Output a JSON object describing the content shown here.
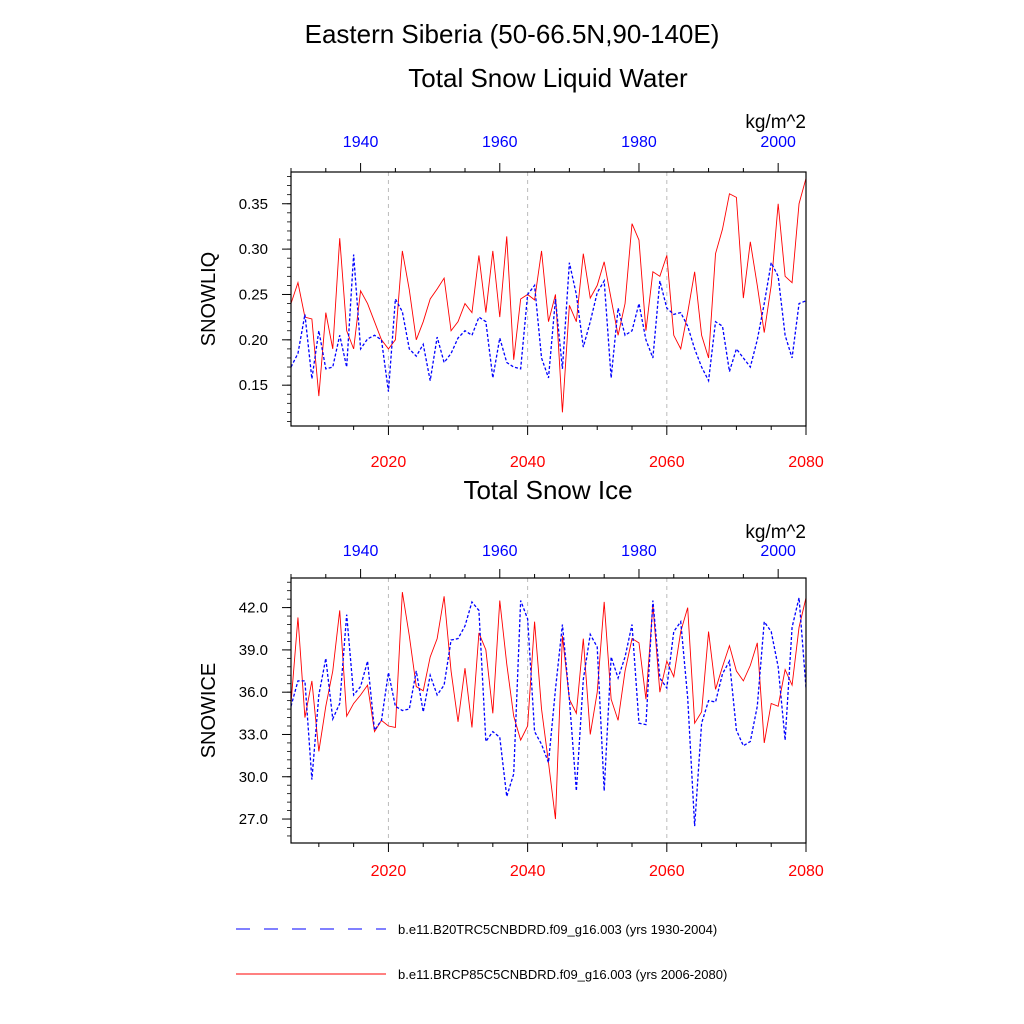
{
  "figure": {
    "title": "Eastern Siberia (50-66.5N,90-140E)"
  },
  "chart_data": [
    {
      "type": "line",
      "title": "Total Snow Liquid Water",
      "ylabel": "SNOWLIQ",
      "units": "kg/m^2",
      "ylim": [
        0.105,
        0.385
      ],
      "y_ticks": [
        0.15,
        0.2,
        0.25,
        0.3,
        0.35
      ],
      "y_tick_labels": [
        "0.15",
        "0.20",
        "0.25",
        "0.30",
        "0.35"
      ],
      "x_bottom": {
        "range": [
          2006,
          2080
        ],
        "ticks": [
          2020,
          2040,
          2060,
          2080
        ],
        "labels": [
          "2020",
          "2040",
          "2060",
          "2080"
        ],
        "color": "#ff0000"
      },
      "x_top": {
        "range": [
          1930,
          2004
        ],
        "ticks": [
          1940,
          1960,
          1980,
          2000
        ],
        "labels": [
          "1940",
          "1960",
          "1980",
          "2000"
        ],
        "color": "#0000ff"
      },
      "grid": "vertical dashed at bottom-axis ticks",
      "series": [
        {
          "name": "b.e11.BRCP85C5CNBDRD.f09_g16.003 (yrs 2006-2080)",
          "axis": "bottom",
          "color": "#ff0000",
          "style": "solid",
          "x_start": 2006,
          "values": [
            0.24,
            0.263,
            0.225,
            0.223,
            0.138,
            0.23,
            0.19,
            0.312,
            0.21,
            0.19,
            0.254,
            0.24,
            0.22,
            0.2,
            0.19,
            0.2,
            0.298,
            0.255,
            0.2,
            0.22,
            0.245,
            0.256,
            0.268,
            0.21,
            0.22,
            0.24,
            0.23,
            0.293,
            0.23,
            0.298,
            0.225,
            0.314,
            0.178,
            0.245,
            0.25,
            0.244,
            0.298,
            0.22,
            0.25,
            0.12,
            0.238,
            0.22,
            0.295,
            0.246,
            0.26,
            0.286,
            0.245,
            0.205,
            0.24,
            0.328,
            0.31,
            0.21,
            0.275,
            0.27,
            0.293,
            0.205,
            0.19,
            0.23,
            0.275,
            0.205,
            0.18,
            0.295,
            0.322,
            0.361,
            0.357,
            0.246,
            0.308,
            0.26,
            0.208,
            0.26,
            0.35,
            0.27,
            0.263,
            0.35,
            0.378,
            0.29
          ]
        },
        {
          "name": "b.e11.B20TRC5CNBDRD.f09_g16.003 (yrs 1930-2004)",
          "axis": "top",
          "color": "#0000ff",
          "style": "dashed",
          "x_start": 1930,
          "values": [
            0.17,
            0.185,
            0.228,
            0.157,
            0.21,
            0.168,
            0.17,
            0.205,
            0.17,
            0.294,
            0.19,
            0.201,
            0.205,
            0.2,
            0.143,
            0.245,
            0.231,
            0.19,
            0.182,
            0.195,
            0.155,
            0.203,
            0.175,
            0.185,
            0.202,
            0.21,
            0.205,
            0.225,
            0.22,
            0.158,
            0.202,
            0.175,
            0.17,
            0.168,
            0.25,
            0.26,
            0.18,
            0.158,
            0.245,
            0.168,
            0.285,
            0.25,
            0.192,
            0.22,
            0.252,
            0.265,
            0.158,
            0.235,
            0.205,
            0.21,
            0.24,
            0.2,
            0.18,
            0.265,
            0.235,
            0.228,
            0.23,
            0.215,
            0.19,
            0.17,
            0.155,
            0.22,
            0.215,
            0.165,
            0.19,
            0.18,
            0.17,
            0.2,
            0.24,
            0.285,
            0.27,
            0.205,
            0.18,
            0.24,
            0.243,
            0.223
          ]
        }
      ]
    },
    {
      "type": "line",
      "title": "Total Snow Ice",
      "ylabel": "SNOWICE",
      "units": "kg/m^2",
      "ylim": [
        25.3,
        44.1
      ],
      "y_ticks": [
        27,
        30,
        33,
        36,
        39,
        42
      ],
      "y_tick_labels": [
        "27.0",
        "30.0",
        "33.0",
        "36.0",
        "39.0",
        "42.0"
      ],
      "x_bottom": {
        "range": [
          2006,
          2080
        ],
        "ticks": [
          2020,
          2040,
          2060,
          2080
        ],
        "labels": [
          "2020",
          "2040",
          "2060",
          "2080"
        ],
        "color": "#ff0000"
      },
      "x_top": {
        "range": [
          1930,
          2004
        ],
        "ticks": [
          1940,
          1960,
          1980,
          2000
        ],
        "labels": [
          "1940",
          "1960",
          "1980",
          "2000"
        ],
        "color": "#0000ff"
      },
      "grid": "vertical dashed at bottom-axis ticks",
      "series": [
        {
          "name": "b.e11.BRCP85C5CNBDRD.f09_g16.003 (yrs 2006-2080)",
          "axis": "bottom",
          "color": "#ff0000",
          "style": "solid",
          "x_start": 2006,
          "values": [
            35.2,
            41.3,
            34.2,
            36.8,
            31.8,
            35.0,
            37.5,
            41.8,
            34.3,
            35.2,
            35.8,
            36.5,
            33.2,
            34.0,
            33.6,
            33.5,
            43.1,
            40.0,
            36.4,
            36.1,
            38.5,
            39.8,
            42.8,
            37.5,
            33.9,
            37.7,
            33.5,
            40.2,
            39.0,
            34.5,
            42.5,
            38.0,
            34.3,
            32.6,
            33.6,
            41.0,
            34.8,
            31.0,
            27.0,
            40.0,
            35.5,
            34.5,
            39.8,
            33.0,
            36.0,
            42.4,
            35.5,
            34.0,
            37.5,
            39.8,
            39.5,
            35.5,
            42.2,
            36.0,
            38.2,
            37.1,
            40.3,
            42.0,
            33.8,
            34.6,
            40.3,
            36.2,
            37.8,
            39.3,
            37.5,
            36.8,
            37.9,
            39.5,
            32.4,
            35.2,
            35.0,
            37.6,
            36.5,
            40.6,
            42.7,
            36.1
          ]
        },
        {
          "name": "b.e11.B20TRC5CNBDRD.f09_g16.003 (yrs 1930-2004)",
          "axis": "top",
          "color": "#0000ff",
          "style": "dashed",
          "x_start": 1930,
          "values": [
            35.0,
            36.8,
            36.8,
            29.8,
            35.8,
            38.4,
            34.1,
            35.2,
            41.5,
            35.8,
            36.4,
            38.2,
            33.3,
            34.0,
            37.4,
            35.0,
            34.7,
            34.8,
            37.5,
            34.6,
            37.2,
            35.8,
            36.5,
            39.7,
            39.8,
            40.7,
            42.4,
            41.8,
            32.5,
            33.2,
            32.8,
            28.6,
            30.2,
            42.5,
            41.2,
            33.2,
            32.3,
            31.0,
            36.2,
            40.8,
            35.5,
            29.0,
            36.9,
            40.1,
            39.2,
            29.0,
            38.5,
            37.0,
            38.5,
            40.8,
            33.8,
            33.7,
            42.5,
            37.0,
            36.3,
            40.3,
            41.0,
            35.6,
            26.5,
            33.8,
            35.4,
            35.3,
            37.3,
            38.2,
            33.3,
            32.2,
            32.5,
            35.0,
            41.0,
            40.3,
            37.8,
            32.6,
            40.6,
            42.7,
            36.3,
            36.3
          ]
        }
      ]
    }
  ],
  "legend": {
    "entries": [
      {
        "label": "b.e11.B20TRC5CNBDRD.f09_g16.003 (yrs 1930-2004)",
        "color": "#0000ff",
        "style": "dashed"
      },
      {
        "label": "b.e11.BRCP85C5CNBDRD.f09_g16.003 (yrs 2006-2080)",
        "color": "#ff0000",
        "style": "solid"
      }
    ]
  }
}
